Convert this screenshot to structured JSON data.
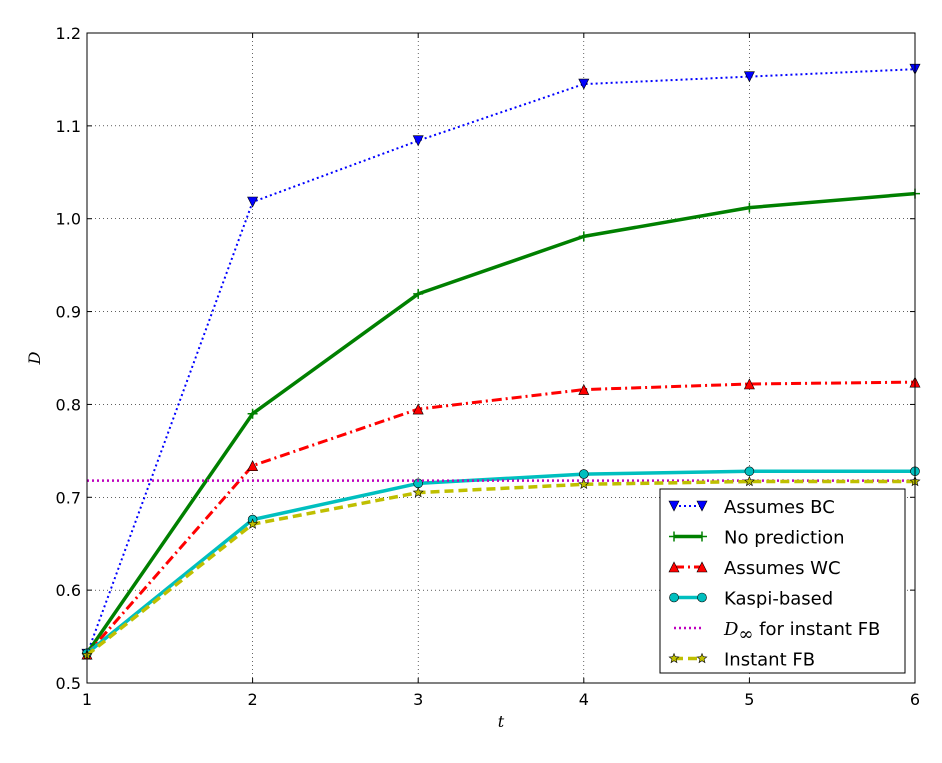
{
  "chart_data": {
    "type": "line",
    "xlabel": "t",
    "ylabel": "D",
    "xlim": [
      1,
      6
    ],
    "ylim": [
      0.5,
      1.2
    ],
    "xticks": [
      "1",
      "2",
      "3",
      "4",
      "5",
      "6"
    ],
    "yticks": [
      "0.5",
      "0.6",
      "0.7",
      "0.8",
      "0.9",
      "1.0",
      "1.1",
      "1.2"
    ],
    "grid": true,
    "legend_position": "bottom-right",
    "x": [
      1,
      2,
      3,
      4,
      5,
      6
    ],
    "series": [
      {
        "name": "Assumes BC",
        "values": [
          0.531,
          1.018,
          1.084,
          1.145,
          1.153,
          1.161
        ],
        "color": "#0000ff",
        "linestyle": "dotted",
        "marker": "triangle-down"
      },
      {
        "name": "No prediction",
        "values": [
          0.532,
          0.79,
          0.919,
          0.981,
          1.012,
          1.027
        ],
        "color": "#008000",
        "linestyle": "solid",
        "marker": "plus"
      },
      {
        "name": "Assumes WC",
        "values": [
          0.531,
          0.734,
          0.795,
          0.816,
          0.822,
          0.824
        ],
        "color": "#ff0000",
        "linestyle": "dashdot",
        "marker": "triangle-up"
      },
      {
        "name": "Kaspi-based",
        "values": [
          0.532,
          0.676,
          0.715,
          0.725,
          0.728,
          0.728
        ],
        "color": "#00bfbf",
        "linestyle": "solid",
        "marker": "circle"
      },
      {
        "name_prefix": "D",
        "name_subscript": "∞",
        "name": " for instant FB",
        "values": [
          0.718,
          0.718,
          0.718,
          0.718,
          0.718,
          0.718
        ],
        "color": "#bf00bf",
        "linestyle": "dotted",
        "marker": "none"
      },
      {
        "name": "Instant FB",
        "values": [
          0.53,
          0.671,
          0.705,
          0.714,
          0.717,
          0.717
        ],
        "color": "#bfbf00",
        "linestyle": "dashed",
        "marker": "star"
      }
    ]
  }
}
